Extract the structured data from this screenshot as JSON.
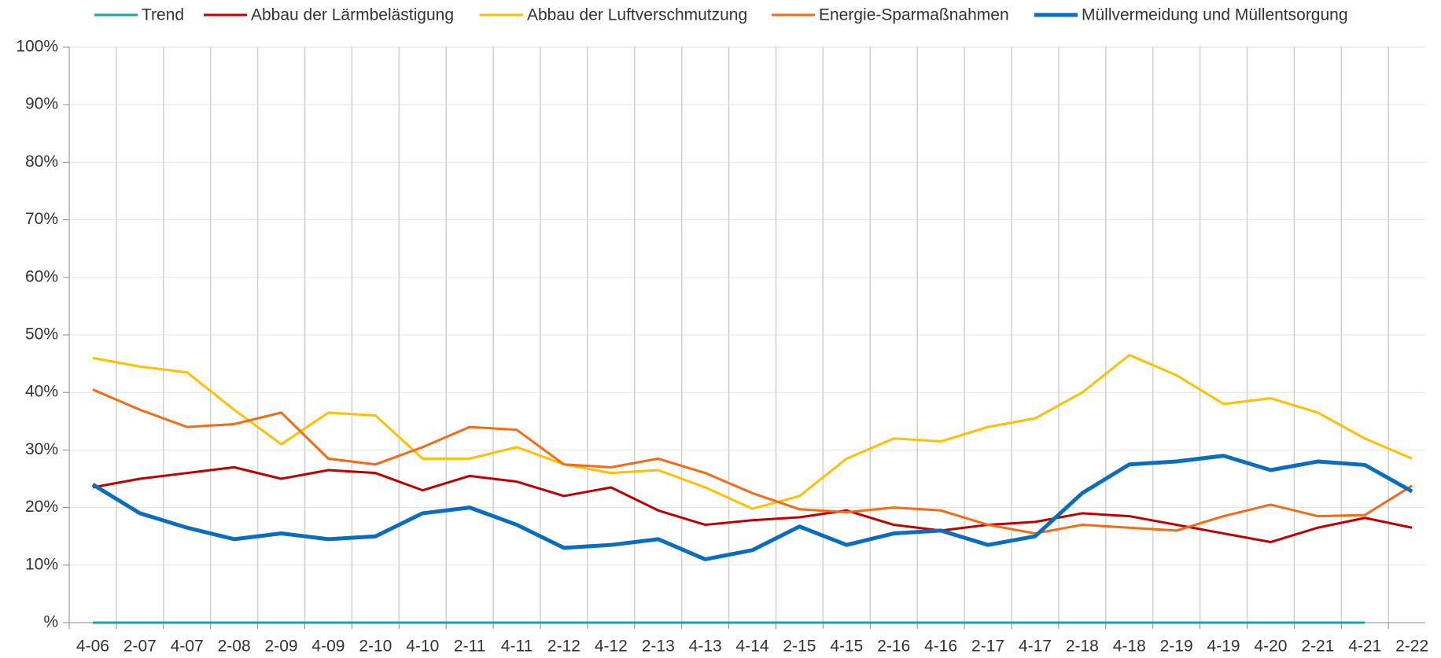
{
  "chart_data": {
    "type": "line",
    "categories": [
      "4-06",
      "2-07",
      "4-07",
      "2-08",
      "2-09",
      "4-09",
      "2-10",
      "4-10",
      "2-11",
      "4-11",
      "2-12",
      "4-12",
      "2-13",
      "4-13",
      "4-14",
      "2-15",
      "4-15",
      "2-16",
      "4-16",
      "2-17",
      "4-17",
      "2-18",
      "4-18",
      "2-19",
      "4-19",
      "4-20",
      "2-21",
      "4-21",
      "2-22"
    ],
    "series": [
      {
        "name": "Trend",
        "color": "#1aa3a3",
        "values": [
          0,
          0,
          0,
          0,
          0,
          0,
          0,
          0,
          0,
          0,
          0,
          0,
          0,
          0,
          0,
          0,
          0,
          0,
          0,
          0,
          0,
          0,
          0,
          0,
          0,
          0,
          0,
          0,
          null
        ]
      },
      {
        "name": "Abbau der Lärmbelästigung",
        "color": "#c00000",
        "values": [
          23.5,
          25,
          26,
          27,
          25,
          26.5,
          26,
          23,
          25.5,
          24.5,
          22,
          23.5,
          19.5,
          17,
          17.8,
          18.3,
          19.5,
          17,
          16,
          17,
          17.5,
          19,
          18.5,
          17,
          15.5,
          14,
          16.5,
          18.2,
          16.5
        ]
      },
      {
        "name": "Abbau der Luftverschmutzung",
        "color": "#ffc000",
        "values": [
          46,
          44.5,
          43.5,
          37,
          31,
          36.5,
          36,
          28.5,
          28.5,
          30.5,
          27.5,
          26,
          26.5,
          23.5,
          19.8,
          22,
          28.5,
          32,
          31.5,
          34,
          35.5,
          40,
          46.5,
          43,
          38,
          39,
          36.5,
          32,
          28.5
        ]
      },
      {
        "name": "Energie-Sparmaßnahmen",
        "color": "#f56a12",
        "values": [
          40.5,
          37,
          34,
          34.5,
          36.5,
          28.5,
          27.5,
          30.5,
          34,
          33.5,
          27.5,
          27,
          28.5,
          26,
          22.5,
          19.7,
          19.2,
          20,
          19.5,
          17,
          15.5,
          17,
          16.5,
          16,
          18.5,
          20.5,
          18.5,
          18.7,
          23.8
        ]
      },
      {
        "name": "Müllvermeidung und Müllentsorgung",
        "color": "#0a6ebd",
        "values": [
          24,
          19,
          16.5,
          14.5,
          15.5,
          14.5,
          15,
          19,
          20,
          17,
          13,
          13.5,
          14.5,
          11,
          12.6,
          16.7,
          13.5,
          15.5,
          16,
          13.5,
          15,
          22.5,
          27.5,
          28,
          29,
          26.5,
          28,
          27.4,
          22.8
        ]
      }
    ],
    "ylim": [
      0,
      100
    ],
    "yticks": [
      {
        "value": 0,
        "label": "%"
      },
      {
        "value": 10,
        "label": "10%"
      },
      {
        "value": 20,
        "label": "20%"
      },
      {
        "value": 30,
        "label": "30%"
      },
      {
        "value": 40,
        "label": "40%"
      },
      {
        "value": 50,
        "label": "50%"
      },
      {
        "value": 60,
        "label": "60%"
      },
      {
        "value": 70,
        "label": "70%"
      },
      {
        "value": 80,
        "label": "80%"
      },
      {
        "value": 90,
        "label": "90%"
      },
      {
        "value": 100,
        "label": "100%"
      }
    ],
    "grid": true,
    "legend": "top"
  }
}
